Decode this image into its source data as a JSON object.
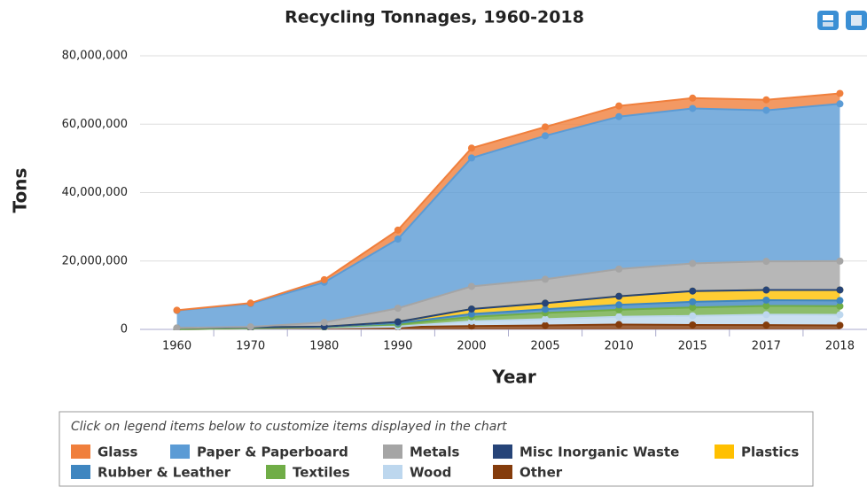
{
  "chart_data": {
    "type": "stacked-area",
    "title": "Recycling Tonnages, 1960-2018",
    "x_label": "Year",
    "y_label": "Tons",
    "legend_note": "Click on legend items below to customize items displayed in the chart",
    "categories": [
      "1960",
      "1970",
      "1980",
      "1990",
      "2000",
      "2005",
      "2010",
      "2015",
      "2017",
      "2018"
    ],
    "ylim": [
      0,
      80000000
    ],
    "yticks": [
      0,
      {
        "value": 20000000,
        "label": "20,000,000"
      },
      {
        "value": 40000000,
        "label": "40,000,000"
      },
      {
        "value": 60000000,
        "label": "60,000,000"
      },
      {
        "value": 80000000,
        "label": "80,000,000"
      }
    ],
    "grid": true,
    "series": [
      {
        "name": "Glass",
        "color": "#f07f3c",
        "values": [
          100000,
          160000,
          750000,
          2630000,
          2880000,
          2590000,
          3130000,
          3030000,
          3070000,
          3060000
        ]
      },
      {
        "name": "Paper & Paperboard",
        "color": "#5b9bd5",
        "values": [
          5080000,
          6770000,
          11740000,
          20230000,
          37560000,
          41960000,
          44570000,
          45320000,
          44170000,
          45970000
        ]
      },
      {
        "name": "Metals",
        "color": "#a5a5a5",
        "values": [
          50000,
          150000,
          1220000,
          3970000,
          6600000,
          6990000,
          7960000,
          8070000,
          8380000,
          8440000
        ]
      },
      {
        "name": "Misc Inorganic Waste",
        "color": "#264478",
        "values": [
          0,
          0,
          0,
          0,
          0,
          0,
          0,
          0,
          0,
          0
        ]
      },
      {
        "name": "Plastics",
        "color": "#ffc000",
        "values": [
          0,
          0,
          20000,
          370000,
          1480000,
          1780000,
          2500000,
          3140000,
          2960000,
          3090000
        ]
      },
      {
        "name": "Rubber & Leather",
        "color": "#3f86c0",
        "values": [
          330000,
          250000,
          130000,
          370000,
          820000,
          1050000,
          1440000,
          1650000,
          1680000,
          1650000
        ]
      },
      {
        "name": "Textiles",
        "color": "#70ad47",
        "values": [
          50000,
          60000,
          160000,
          660000,
          1320000,
          1830000,
          2050000,
          2460000,
          2570000,
          2510000
        ]
      },
      {
        "name": "Wood",
        "color": "#bdd7ee",
        "values": [
          0,
          0,
          0,
          130000,
          1370000,
          1830000,
          2280000,
          2660000,
          3050000,
          3100000
        ]
      },
      {
        "name": "Other",
        "color": "#843c0c",
        "values": [
          0,
          300000,
          500000,
          680000,
          980000,
          1170000,
          1410000,
          1300000,
          1250000,
          1180000
        ]
      }
    ]
  }
}
